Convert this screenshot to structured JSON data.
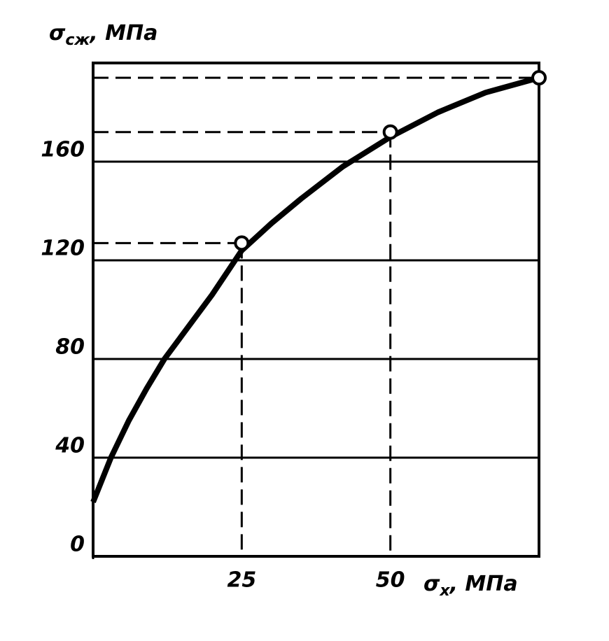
{
  "chart_data": {
    "type": "line",
    "ylabel": {
      "symbol": "σ",
      "subscript": "сж",
      "unit": ", МПа"
    },
    "xlabel": {
      "symbol": "σ",
      "subscript": "х",
      "unit": ", МПа"
    },
    "xlim": [
      0,
      75
    ],
    "ylim": [
      0,
      200
    ],
    "xticks": [
      0,
      25,
      50
    ],
    "yticks": [
      0,
      40,
      80,
      120,
      160
    ],
    "grid": true,
    "series": [
      {
        "x": [
          0,
          3,
          6,
          9,
          12,
          16,
          20,
          25,
          30,
          35,
          42,
          50,
          58,
          66,
          75
        ],
        "values": [
          22,
          40,
          55,
          68,
          80,
          93,
          106,
          124,
          135,
          145,
          158,
          170,
          180,
          188,
          194
        ],
        "color": "#000000"
      },
      {
        "x": [
          25,
          50,
          75
        ],
        "values": [
          127,
          172,
          194
        ],
        "color": "#000000"
      }
    ]
  }
}
